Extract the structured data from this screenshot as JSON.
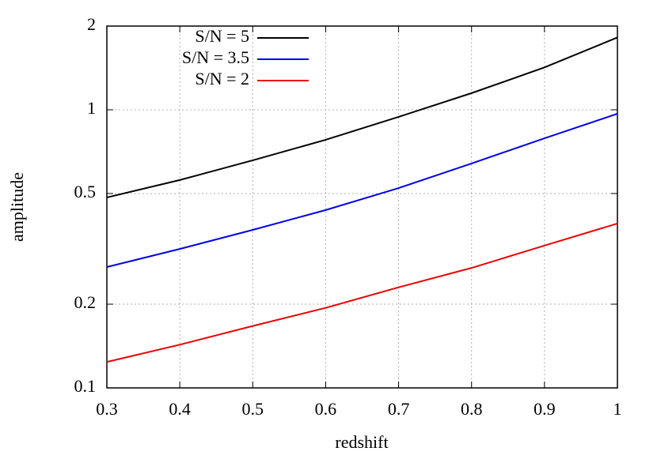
{
  "chart_data": {
    "type": "line",
    "xlabel": "redshift",
    "ylabel": "amplitude",
    "x": [
      0.3,
      0.4,
      0.5,
      0.6,
      0.7,
      0.8,
      0.9,
      1
    ],
    "series": [
      {
        "name": "S/N = 5",
        "color": "#000000",
        "values": [
          0.484,
          0.559,
          0.658,
          0.78,
          0.943,
          1.148,
          1.42,
          1.82
        ]
      },
      {
        "name": "S/N = 3.5",
        "color": "#0000ee",
        "values": [
          0.272,
          0.316,
          0.37,
          0.436,
          0.523,
          0.641,
          0.79,
          0.968
        ]
      },
      {
        "name": "S/N = 2",
        "color": "#ee0000",
        "values": [
          0.124,
          0.143,
          0.167,
          0.194,
          0.23,
          0.27,
          0.325,
          0.39
        ]
      }
    ],
    "xlim": [
      0.3,
      1
    ],
    "xticks": [
      0.3,
      0.4,
      0.5,
      0.6,
      0.7,
      0.8,
      0.9,
      1
    ],
    "ylim": [
      0.1,
      2
    ],
    "yticks": [
      0.1,
      0.2,
      0.5,
      1,
      2
    ],
    "ylog": true,
    "grid": true,
    "legend": "top left"
  }
}
